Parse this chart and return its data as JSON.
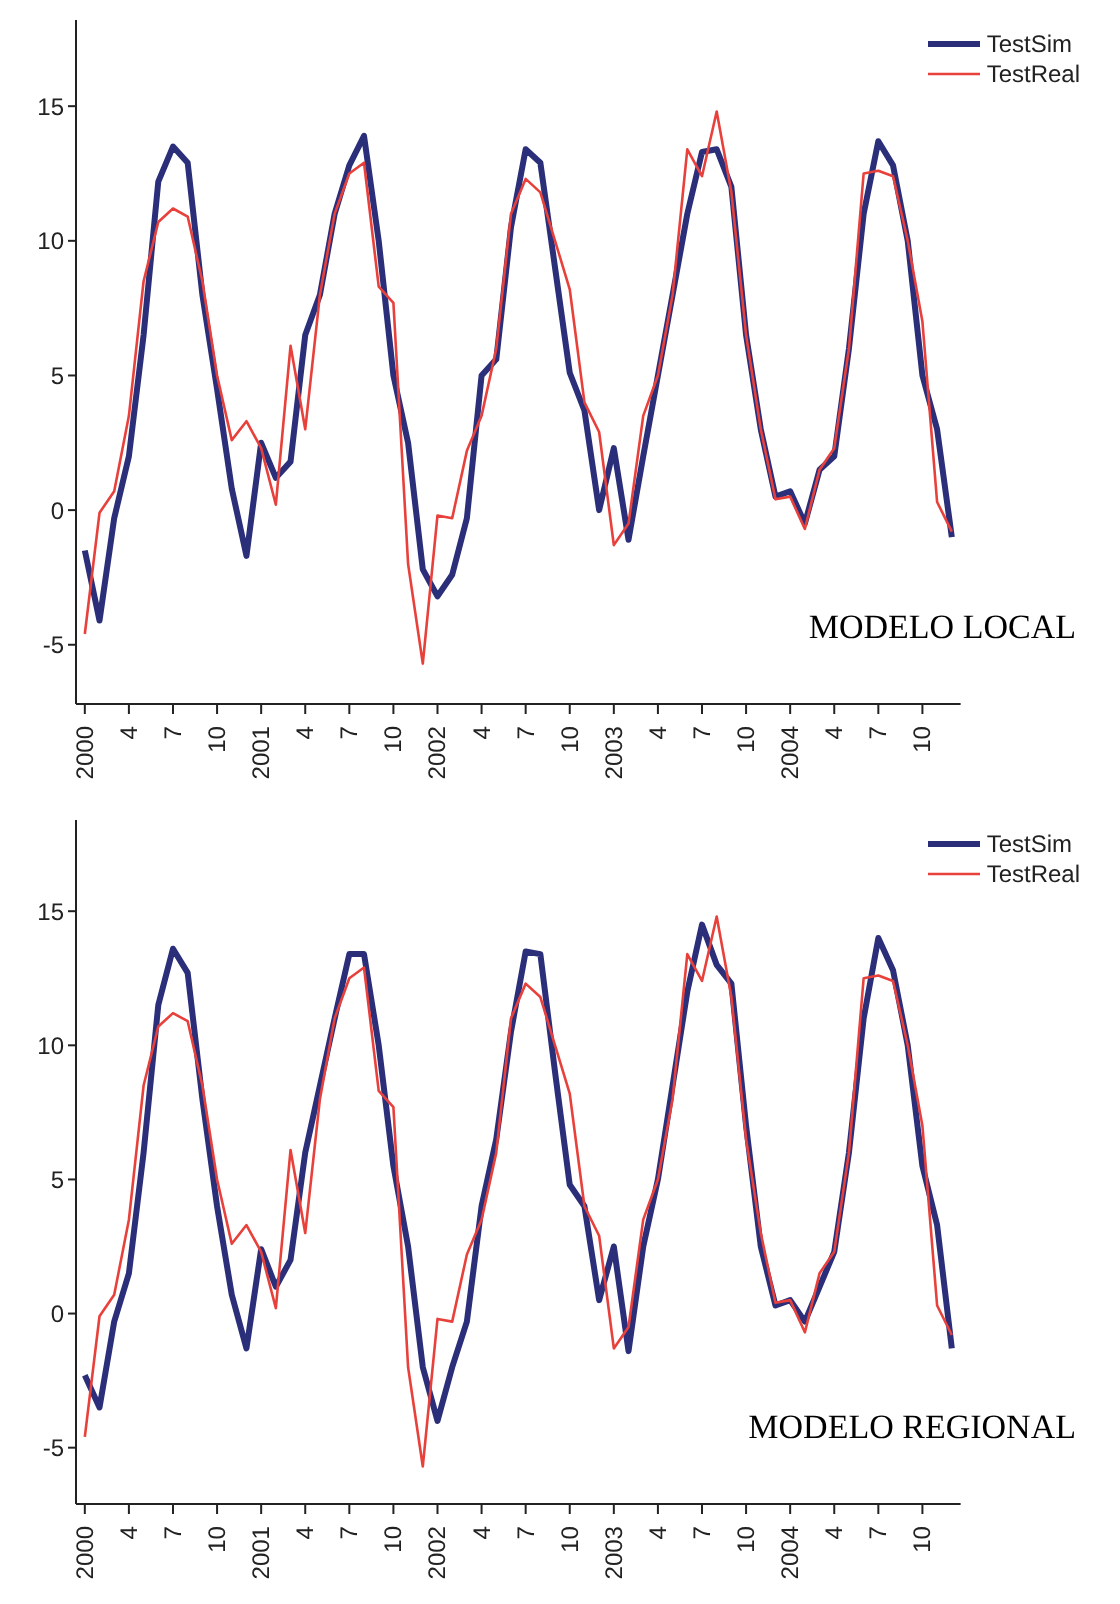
{
  "chart_data": [
    {
      "type": "line",
      "categories": [
        "2000",
        null,
        null,
        "4",
        null,
        null,
        "7",
        null,
        null,
        "10",
        null,
        null,
        "2001",
        null,
        null,
        "4",
        null,
        null,
        "7",
        null,
        null,
        "10",
        null,
        null,
        "2002",
        null,
        null,
        "4",
        null,
        null,
        "7",
        null,
        null,
        "10",
        null,
        null,
        "2003",
        null,
        null,
        "4",
        null,
        null,
        "7",
        null,
        null,
        "10",
        null,
        null,
        "2004",
        null,
        null,
        "4",
        null,
        null,
        "7",
        null,
        null,
        "10",
        null,
        null
      ],
      "series": [
        {
          "name": "TestSim",
          "color": "#2b2f7a",
          "values": [
            -1.5,
            -4.1,
            -0.3,
            2,
            6.5,
            12.2,
            13.5,
            12.9,
            8,
            4.5,
            0.8,
            -1.7,
            2.5,
            1.2,
            1.8,
            6.5,
            8,
            11,
            12.8,
            13.9,
            10,
            5,
            2.5,
            -2.2,
            -3.2,
            -2.4,
            -0.3,
            5,
            5.6,
            10.5,
            13.4,
            12.9,
            9,
            5.1,
            3.7,
            0,
            2.3,
            -1.1,
            2,
            5,
            8,
            11,
            13.3,
            13.4,
            12,
            6.5,
            3,
            0.5,
            0.7,
            -0.5,
            1.5,
            2,
            6,
            11,
            13.7,
            12.8,
            10,
            5,
            3,
            -1
          ]
        },
        {
          "name": "TestReal",
          "color": "#e8413c",
          "values": [
            -4.6,
            -0.1,
            0.7,
            3.5,
            8.5,
            10.7,
            11.2,
            10.9,
            8.5,
            5,
            2.6,
            3.3,
            2.3,
            0.2,
            6.1,
            3,
            8,
            11,
            12.5,
            12.9,
            8.3,
            7.7,
            -2,
            -5.7,
            -0.2,
            -0.3,
            2.2,
            3.5,
            6,
            11,
            12.3,
            11.8,
            10,
            8.2,
            4,
            2.9,
            -1.3,
            -0.5,
            3.5,
            5,
            8,
            13.4,
            12.4,
            14.8,
            11.8,
            6.5,
            3,
            0.4,
            0.5,
            -0.7,
            1.5,
            2.3,
            6,
            12.5,
            12.6,
            12.4,
            10,
            7,
            0.3,
            -0.8
          ]
        }
      ],
      "ylim": [
        -7.2,
        18.2
      ],
      "yticks": [
        -5,
        0,
        5,
        10,
        15
      ],
      "grid": false,
      "legend": "top right",
      "marker": "none",
      "annotations": [
        "MODELO LOCAL"
      ]
    },
    {
      "type": "line",
      "categories": [
        "2000",
        null,
        null,
        "4",
        null,
        null,
        "7",
        null,
        null,
        "10",
        null,
        null,
        "2001",
        null,
        null,
        "4",
        null,
        null,
        "7",
        null,
        null,
        "10",
        null,
        null,
        "2002",
        null,
        null,
        "4",
        null,
        null,
        "7",
        null,
        null,
        "10",
        null,
        null,
        "2003",
        null,
        null,
        "4",
        null,
        null,
        "7",
        null,
        null,
        "10",
        null,
        null,
        "2004",
        null,
        null,
        "4",
        null,
        null,
        "7",
        null,
        null,
        "10",
        null,
        null
      ],
      "series": [
        {
          "name": "TestSim",
          "color": "#2b2f7a",
          "values": [
            -2.3,
            -3.5,
            -0.3,
            1.5,
            6,
            11.5,
            13.6,
            12.7,
            8,
            4,
            0.7,
            -1.3,
            2.4,
            1,
            2,
            6,
            8.5,
            11,
            13.4,
            13.4,
            10,
            5.5,
            2.5,
            -2,
            -4,
            -2,
            -0.3,
            4,
            6.5,
            10.5,
            13.5,
            13.4,
            9,
            4.8,
            4,
            0.5,
            2.5,
            -1.4,
            2.5,
            5,
            8.5,
            12,
            14.5,
            13,
            12.3,
            7,
            2.5,
            0.3,
            0.5,
            -0.3,
            1,
            2.3,
            6,
            11,
            14,
            12.8,
            10,
            5.5,
            3.3,
            -1.3
          ]
        },
        {
          "name": "TestReal",
          "color": "#e8413c",
          "values": [
            -4.6,
            -0.1,
            0.7,
            3.5,
            8.5,
            10.7,
            11.2,
            10.9,
            8.5,
            5,
            2.6,
            3.3,
            2.3,
            0.2,
            6.1,
            3,
            8,
            11,
            12.5,
            12.9,
            8.3,
            7.7,
            -2,
            -5.7,
            -0.2,
            -0.3,
            2.2,
            3.5,
            6,
            11,
            12.3,
            11.8,
            10,
            8.2,
            4,
            2.9,
            -1.3,
            -0.5,
            3.5,
            5,
            8,
            13.4,
            12.4,
            14.8,
            11.8,
            6.5,
            3,
            0.4,
            0.5,
            -0.7,
            1.5,
            2.3,
            6,
            12.5,
            12.6,
            12.4,
            10,
            7,
            0.3,
            -0.8
          ]
        }
      ],
      "ylim": [
        -7.1,
        18.4
      ],
      "yticks": [
        -5,
        0,
        5,
        10,
        15
      ],
      "grid": false,
      "legend": "top right",
      "marker": "none",
      "annotations": [
        "MODELO REGIONAL"
      ]
    }
  ]
}
